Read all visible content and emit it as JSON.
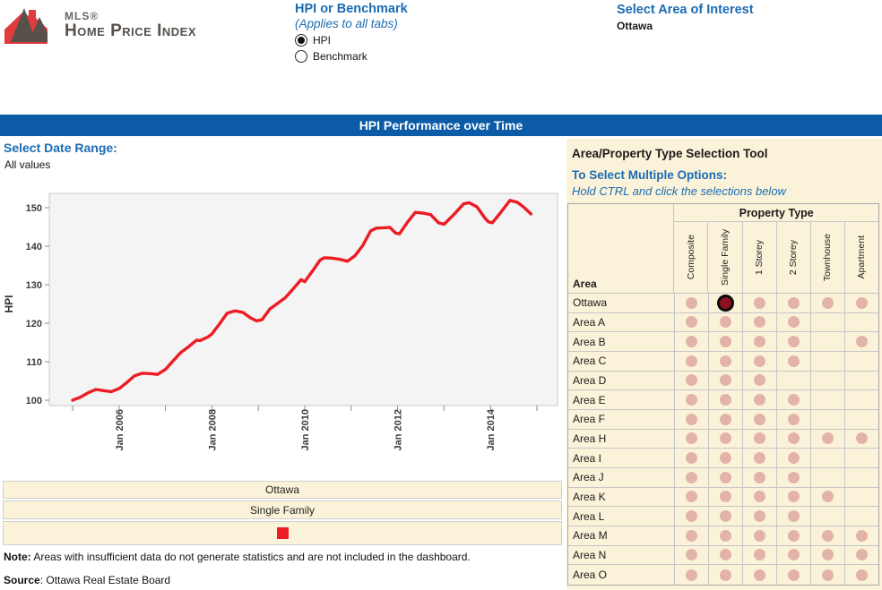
{
  "colors": {
    "accent_blue": "#1b6cb3",
    "banner_blue": "#0b5ba7",
    "cream": "#fbf3d9",
    "line_red": "#ec1c24",
    "dot_pink": "#e3b3a9",
    "dot_selected": "#8e1023",
    "logo_red": "#e03c3e",
    "logo_gray": "#57504b"
  },
  "logo": {
    "mls": "MLS®",
    "title": "Home Price Index"
  },
  "header": {
    "hpi_benchmark": {
      "title": "HPI or Benchmark",
      "subtitle": "(Applies to all tabs)",
      "options": [
        {
          "label": "HPI",
          "selected": true
        },
        {
          "label": "Benchmark",
          "selected": false
        }
      ]
    },
    "area_of_interest": {
      "title": "Select Area of Interest",
      "value": "Ottawa"
    }
  },
  "banner": {
    "title": "HPI Performance over Time"
  },
  "date_range": {
    "label": "Select Date Range:",
    "value": "All values"
  },
  "chart_data": {
    "type": "line",
    "title": "HPI Performance over Time",
    "xlabel": "",
    "ylabel": "HPI",
    "ylim": [
      98.5,
      153.6
    ],
    "yticks": [
      100,
      110,
      120,
      130,
      140,
      150
    ],
    "xticks": [
      {
        "year": 2006,
        "label": "Jan 2006"
      },
      {
        "year": 2008,
        "label": "Jan 2008"
      },
      {
        "year": 2010,
        "label": "Jan 2010"
      },
      {
        "year": 2012,
        "label": "Jan 2012"
      },
      {
        "year": 2014,
        "label": "Jan 2014"
      }
    ],
    "minor_tick_years": [
      2005,
      2006,
      2007,
      2008,
      2009,
      2010,
      2011,
      2012,
      2013,
      2014,
      2015
    ],
    "grid": false,
    "legend_position": "below",
    "series": [
      {
        "name": "Ottawa Single Family",
        "color": "#ec1c24",
        "x_unit": "decimal_year",
        "points": [
          [
            2005.0,
            100.0
          ],
          [
            2005.17,
            100.8
          ],
          [
            2005.33,
            101.9
          ],
          [
            2005.5,
            102.8
          ],
          [
            2005.67,
            102.5
          ],
          [
            2005.83,
            102.2
          ],
          [
            2006.0,
            103.0
          ],
          [
            2006.17,
            104.6
          ],
          [
            2006.33,
            106.3
          ],
          [
            2006.5,
            107.0
          ],
          [
            2006.67,
            106.9
          ],
          [
            2006.83,
            106.7
          ],
          [
            2007.0,
            108.0
          ],
          [
            2007.17,
            110.3
          ],
          [
            2007.33,
            112.4
          ],
          [
            2007.5,
            113.9
          ],
          [
            2007.67,
            115.6
          ],
          [
            2007.75,
            115.5
          ],
          [
            2007.92,
            116.5
          ],
          [
            2008.0,
            117.2
          ],
          [
            2008.17,
            119.9
          ],
          [
            2008.33,
            122.6
          ],
          [
            2008.5,
            123.2
          ],
          [
            2008.67,
            122.8
          ],
          [
            2008.83,
            121.4
          ],
          [
            2008.96,
            120.6
          ],
          [
            2009.08,
            120.9
          ],
          [
            2009.25,
            123.7
          ],
          [
            2009.42,
            125.2
          ],
          [
            2009.58,
            126.6
          ],
          [
            2009.75,
            128.9
          ],
          [
            2009.92,
            131.3
          ],
          [
            2010.0,
            130.8
          ],
          [
            2010.17,
            133.6
          ],
          [
            2010.33,
            136.4
          ],
          [
            2010.42,
            137.0
          ],
          [
            2010.58,
            136.9
          ],
          [
            2010.75,
            136.6
          ],
          [
            2010.92,
            136.1
          ],
          [
            2011.08,
            137.5
          ],
          [
            2011.25,
            140.2
          ],
          [
            2011.42,
            144.0
          ],
          [
            2011.54,
            144.7
          ],
          [
            2011.71,
            144.8
          ],
          [
            2011.83,
            144.9
          ],
          [
            2011.96,
            143.4
          ],
          [
            2012.04,
            143.2
          ],
          [
            2012.21,
            146.2
          ],
          [
            2012.38,
            148.8
          ],
          [
            2012.54,
            148.6
          ],
          [
            2012.71,
            148.2
          ],
          [
            2012.88,
            146.1
          ],
          [
            2013.0,
            145.7
          ],
          [
            2013.21,
            148.2
          ],
          [
            2013.42,
            151.0
          ],
          [
            2013.54,
            151.3
          ],
          [
            2013.71,
            150.2
          ],
          [
            2013.88,
            147.3
          ],
          [
            2013.96,
            146.3
          ],
          [
            2014.04,
            146.1
          ],
          [
            2014.21,
            148.6
          ],
          [
            2014.42,
            151.9
          ],
          [
            2014.58,
            151.4
          ],
          [
            2014.71,
            150.2
          ],
          [
            2014.87,
            148.4
          ]
        ]
      }
    ]
  },
  "legend": {
    "rows": [
      "Ottawa",
      "Single Family"
    ],
    "swatch_color": "#ec1c24"
  },
  "notes": {
    "note_label": "Note:",
    "note_body": " Areas with insufficient data do not generate statistics and are not included in the dashboard.",
    "source_label": "Source",
    "source_body": ": Ottawa Real Estate Board"
  },
  "selection_tool": {
    "title": "Area/Property Type Selection Tool",
    "subtitle": "To Select Multiple Options:",
    "instruction": "Hold CTRL and click the selections below",
    "table": {
      "corner_label": "Area",
      "group_header": "Property Type",
      "columns": [
        "Composite",
        "Single Family",
        "1 Storey",
        "2 Storey",
        "Townhouse",
        "Apartment"
      ],
      "cell_codes": {
        "0": "empty",
        "1": "available",
        "2": "selected"
      },
      "rows": [
        {
          "area": "Ottawa",
          "cells": [
            1,
            2,
            1,
            1,
            1,
            1
          ]
        },
        {
          "area": "Area A",
          "cells": [
            1,
            1,
            1,
            1,
            0,
            0
          ]
        },
        {
          "area": "Area B",
          "cells": [
            1,
            1,
            1,
            1,
            0,
            1
          ]
        },
        {
          "area": "Area C",
          "cells": [
            1,
            1,
            1,
            1,
            0,
            0
          ]
        },
        {
          "area": "Area D",
          "cells": [
            1,
            1,
            1,
            0,
            0,
            0
          ]
        },
        {
          "area": "Area E",
          "cells": [
            1,
            1,
            1,
            1,
            0,
            0
          ]
        },
        {
          "area": "Area F",
          "cells": [
            1,
            1,
            1,
            1,
            0,
            0
          ]
        },
        {
          "area": "Area H",
          "cells": [
            1,
            1,
            1,
            1,
            1,
            1
          ]
        },
        {
          "area": "Area I",
          "cells": [
            1,
            1,
            1,
            1,
            0,
            0
          ]
        },
        {
          "area": "Area J",
          "cells": [
            1,
            1,
            1,
            1,
            0,
            0
          ]
        },
        {
          "area": "Area K",
          "cells": [
            1,
            1,
            1,
            1,
            1,
            0
          ]
        },
        {
          "area": "Area L",
          "cells": [
            1,
            1,
            1,
            1,
            0,
            0
          ]
        },
        {
          "area": "Area M",
          "cells": [
            1,
            1,
            1,
            1,
            1,
            1
          ]
        },
        {
          "area": "Area N",
          "cells": [
            1,
            1,
            1,
            1,
            1,
            1
          ]
        },
        {
          "area": "Area O",
          "cells": [
            1,
            1,
            1,
            1,
            1,
            1
          ]
        }
      ]
    }
  }
}
